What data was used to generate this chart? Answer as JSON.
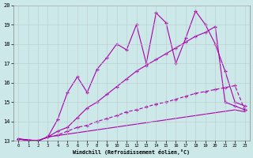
{
  "xlabel": "Windchill (Refroidissement éolien,°C)",
  "xlim": [
    -0.5,
    23.5
  ],
  "ylim": [
    13,
    20
  ],
  "yticks": [
    13,
    14,
    15,
    16,
    17,
    18,
    19,
    20
  ],
  "xticks": [
    0,
    1,
    2,
    3,
    4,
    5,
    6,
    7,
    8,
    9,
    10,
    11,
    12,
    13,
    14,
    15,
    16,
    17,
    18,
    19,
    20,
    21,
    22,
    23
  ],
  "bg_color": "#cce8e8",
  "line_color": "#aa00aa",
  "grid_color": "#bbcccc",
  "line1_x": [
    0,
    1,
    2,
    3,
    4,
    5,
    6,
    7,
    8,
    9,
    10,
    11,
    12,
    13,
    14,
    15,
    16,
    17,
    18,
    19,
    20,
    21,
    22,
    23
  ],
  "line1_y": [
    13.1,
    13.0,
    13.0,
    13.2,
    14.1,
    15.5,
    16.3,
    15.5,
    16.7,
    17.3,
    18.0,
    17.7,
    19.0,
    17.0,
    19.6,
    19.1,
    17.0,
    18.3,
    19.7,
    19.0,
    18.0,
    16.6,
    15.0,
    14.8
  ],
  "line2_x": [
    0,
    2,
    3,
    4,
    5,
    6,
    7,
    8,
    9,
    10,
    11,
    12,
    13,
    14,
    15,
    16,
    17,
    18,
    19,
    20,
    21,
    22,
    23
  ],
  "line2_y": [
    13.1,
    13.0,
    13.2,
    13.5,
    13.7,
    14.2,
    14.7,
    15.0,
    15.4,
    15.8,
    16.2,
    16.6,
    16.9,
    17.2,
    17.5,
    17.8,
    18.1,
    18.4,
    18.6,
    18.9,
    15.0,
    14.8,
    14.6
  ],
  "line3_x": [
    0,
    2,
    3,
    22,
    23
  ],
  "line3_y": [
    13.1,
    13.0,
    13.2,
    14.6,
    14.5
  ],
  "line4_x": [
    0,
    2,
    3,
    4,
    5,
    6,
    7,
    8,
    9,
    10,
    11,
    12,
    13,
    14,
    15,
    16,
    17,
    18,
    19,
    20,
    21,
    22,
    23
  ],
  "line4_y": [
    13.1,
    13.0,
    13.2,
    13.3,
    13.5,
    13.7,
    13.8,
    14.0,
    14.15,
    14.3,
    14.5,
    14.6,
    14.75,
    14.9,
    15.0,
    15.15,
    15.3,
    15.45,
    15.55,
    15.65,
    15.75,
    15.85,
    14.6
  ]
}
